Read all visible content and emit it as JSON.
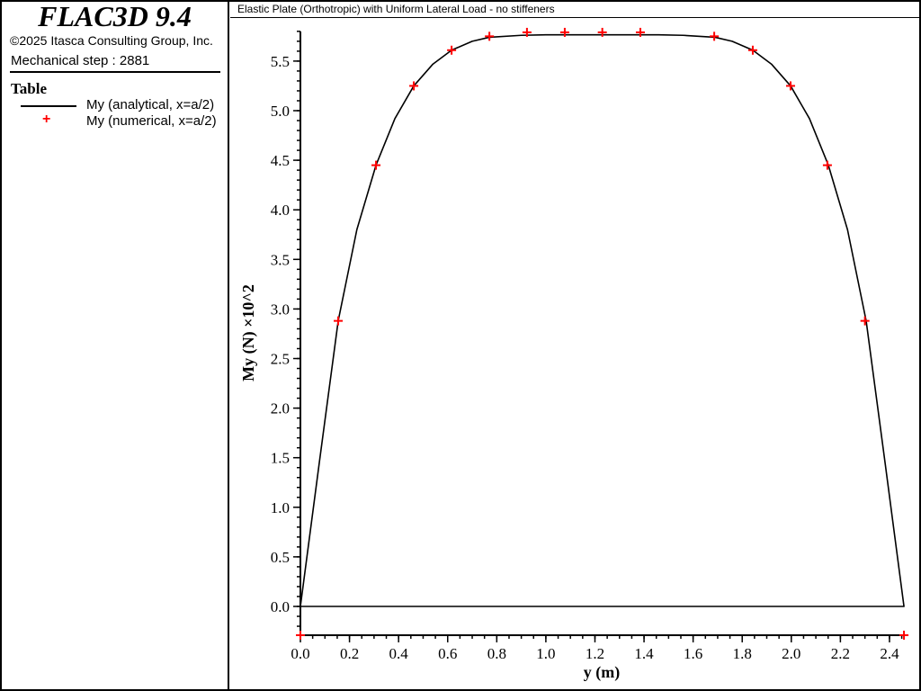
{
  "app": {
    "title": "FLAC3D 9.4",
    "copyright": "©2025 Itasca Consulting Group, Inc.",
    "step": "Mechanical step : 2881"
  },
  "legend": {
    "title": "Table",
    "items": [
      {
        "label": "My (analytical, x=a/2)",
        "style": "line",
        "color": "#000000"
      },
      {
        "label": "My (numerical, x=a/2)",
        "style": "plus-marker",
        "color": "#ff0000"
      }
    ]
  },
  "chart_data": {
    "type": "line",
    "title": "Elastic Plate (Orthotropic) with Uniform Lateral Load - no stiffeners",
    "xlabel": "y (m)",
    "ylabel": "My (N) ×10^2",
    "xlim": [
      0,
      2.459
    ],
    "ylim": [
      -0.29,
      5.8
    ],
    "xticks": [
      "0.0",
      "0.2",
      "0.4",
      "0.6",
      "0.8",
      "1.0",
      "1.2",
      "1.4",
      "1.6",
      "1.8",
      "2.0",
      "2.2",
      "2.4"
    ],
    "yticks": [
      "0.0",
      "0.5",
      "1.0",
      "1.5",
      "2.0",
      "2.5",
      "3.0",
      "3.5",
      "4.0",
      "4.5",
      "5.0",
      "5.5"
    ],
    "grid": false,
    "legend_placement": "left-panel",
    "series": [
      {
        "name": "My (analytical, x=a/2)",
        "style": "line",
        "color": "#000000",
        "x": [
          0,
          0.077,
          0.154,
          0.23,
          0.308,
          0.385,
          0.462,
          0.54,
          0.616,
          0.7,
          0.77,
          0.9,
          1.0,
          1.23,
          1.459,
          1.559,
          1.689,
          1.759,
          1.843,
          1.919,
          1.997,
          2.074,
          2.151,
          2.229,
          2.305,
          2.382,
          2.459,
          2.459,
          0
        ],
        "y": [
          0,
          1.45,
          2.88,
          3.8,
          4.45,
          4.92,
          5.25,
          5.47,
          5.61,
          5.7,
          5.74,
          5.76,
          5.765,
          5.765,
          5.765,
          5.76,
          5.74,
          5.7,
          5.61,
          5.47,
          5.25,
          4.92,
          4.45,
          3.8,
          2.88,
          1.45,
          0,
          0,
          0
        ]
      },
      {
        "name": "My (numerical, x=a/2)",
        "style": "marker",
        "color": "#ff0000",
        "x": [
          0,
          0.154,
          0.308,
          0.462,
          0.616,
          0.77,
          0.923,
          1.077,
          1.23,
          1.385,
          1.686,
          1.843,
          1.997,
          2.147,
          2.3,
          2.459
        ],
        "y": [
          -0.29,
          2.88,
          4.45,
          5.25,
          5.61,
          5.75,
          5.79,
          5.79,
          5.79,
          5.79,
          5.75,
          5.61,
          5.25,
          4.45,
          2.88,
          -0.29
        ]
      }
    ]
  }
}
